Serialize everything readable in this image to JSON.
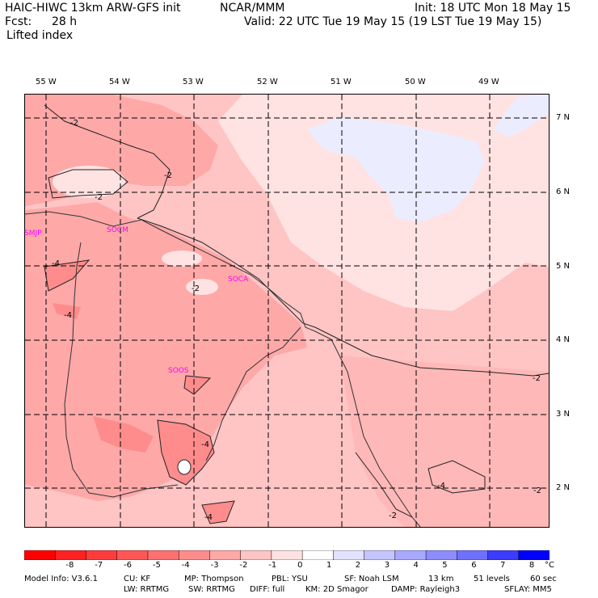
{
  "header": {
    "model": "HAIC-HIWC 13km ARW-GFS init",
    "center": "NCAR/MMM",
    "init": "Init: 18 UTC Mon 18 May 15",
    "fcst_label": "Fcst:",
    "fcst_value": "28 h",
    "valid": "Valid: 22 UTC Tue 19 May 15 (19 LST Tue 19 May 15)",
    "field": "Lifted index"
  },
  "map": {
    "lon_labels": [
      "55 W",
      "54 W",
      "53 W",
      "52 W",
      "51 W",
      "50 W",
      "49 W"
    ],
    "lat_labels": [
      "7 N",
      "6 N",
      "5 N",
      "4 N",
      "3 N",
      "2 N"
    ],
    "contour_labels": [
      "-2",
      "-2",
      "-2",
      "-2",
      "-2",
      "-2",
      "-2",
      "-4",
      "-4",
      "-4",
      "-4",
      "-4"
    ],
    "stations": [
      "SMJP",
      "SOCM",
      "SOCA",
      "SOOS"
    ]
  },
  "colorbar": {
    "ticks": [
      "-8",
      "-7",
      "-6",
      "-5",
      "-4",
      "-3",
      "-2",
      "-1",
      "0",
      "1",
      "2",
      "3",
      "4",
      "5",
      "6",
      "7",
      "8"
    ],
    "unit": "°C",
    "colors": [
      "#ff0000",
      "#ff2222",
      "#ff3c3c",
      "#ff5656",
      "#ff7070",
      "#ff8c8c",
      "#ffa8a8",
      "#ffc4c4",
      "#ffe2e2",
      "#ffffff",
      "#e2e2ff",
      "#c4c4ff",
      "#a8a8ff",
      "#8c8cff",
      "#7070ff",
      "#3c3cff",
      "#0000ff"
    ]
  },
  "footer": {
    "model_info": "Model Info: V3.6.1",
    "cu": "CU: KF",
    "mp": "MP: Thompson",
    "pbl": "PBL: YSU",
    "sf": "SF: Noah LSM",
    "res": "13 km",
    "levels": "51 levels",
    "dt": "60 sec",
    "lw": "LW: RRTMG",
    "sw": "SW: RRTMG",
    "diff": "DIFF: full",
    "km": "KM: 2D Smagor",
    "damp": "DAMP: Rayleigh3",
    "sflay": "SFLAY: MM5"
  }
}
